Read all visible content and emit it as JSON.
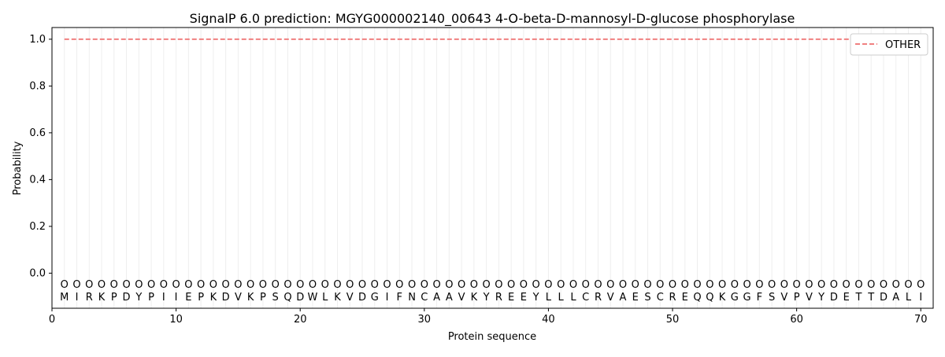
{
  "chart_data": {
    "type": "line",
    "title": "SignalP 6.0 prediction: MGYG000002140_00643 4-O-beta-D-mannosyl-D-glucose phosphorylase",
    "xlabel": "Protein sequence",
    "ylabel": "Probability",
    "xlim": [
      0,
      71
    ],
    "ylim": [
      -0.15,
      1.05
    ],
    "xticks": [
      0,
      10,
      20,
      30,
      40,
      50,
      60,
      70
    ],
    "yticks": [
      0.0,
      0.2,
      0.4,
      0.6,
      0.8,
      1.0
    ],
    "ytick_labels": [
      "0.0",
      "0.2",
      "0.4",
      "0.6",
      "0.8",
      "1.0"
    ],
    "grid": "vertical lines at each residue",
    "legend_position": "top-right",
    "series": [
      {
        "name": "OTHER",
        "color": "#f08080",
        "style": "dashed",
        "x_start": 1,
        "x_end": 70,
        "value": 1.0
      }
    ],
    "sequence": [
      "M",
      "I",
      "R",
      "K",
      "P",
      "D",
      "Y",
      "P",
      "I",
      "I",
      "E",
      "P",
      "K",
      "D",
      "V",
      "K",
      "P",
      "S",
      "Q",
      "D",
      "W",
      "L",
      "K",
      "V",
      "D",
      "G",
      "I",
      "F",
      "N",
      "C",
      "A",
      "A",
      "V",
      "K",
      "Y",
      "R",
      "E",
      "E",
      "Y",
      "L",
      "L",
      "L",
      "C",
      "R",
      "V",
      "A",
      "E",
      "S",
      "C",
      "R",
      "E",
      "Q",
      "Q",
      "K",
      "G",
      "G",
      "F",
      "S",
      "V",
      "P",
      "V",
      "Y",
      "D",
      "E",
      "T",
      "T",
      "D",
      "A",
      "L",
      "I"
    ],
    "marker_labels": "O",
    "marker_y": -0.045
  }
}
